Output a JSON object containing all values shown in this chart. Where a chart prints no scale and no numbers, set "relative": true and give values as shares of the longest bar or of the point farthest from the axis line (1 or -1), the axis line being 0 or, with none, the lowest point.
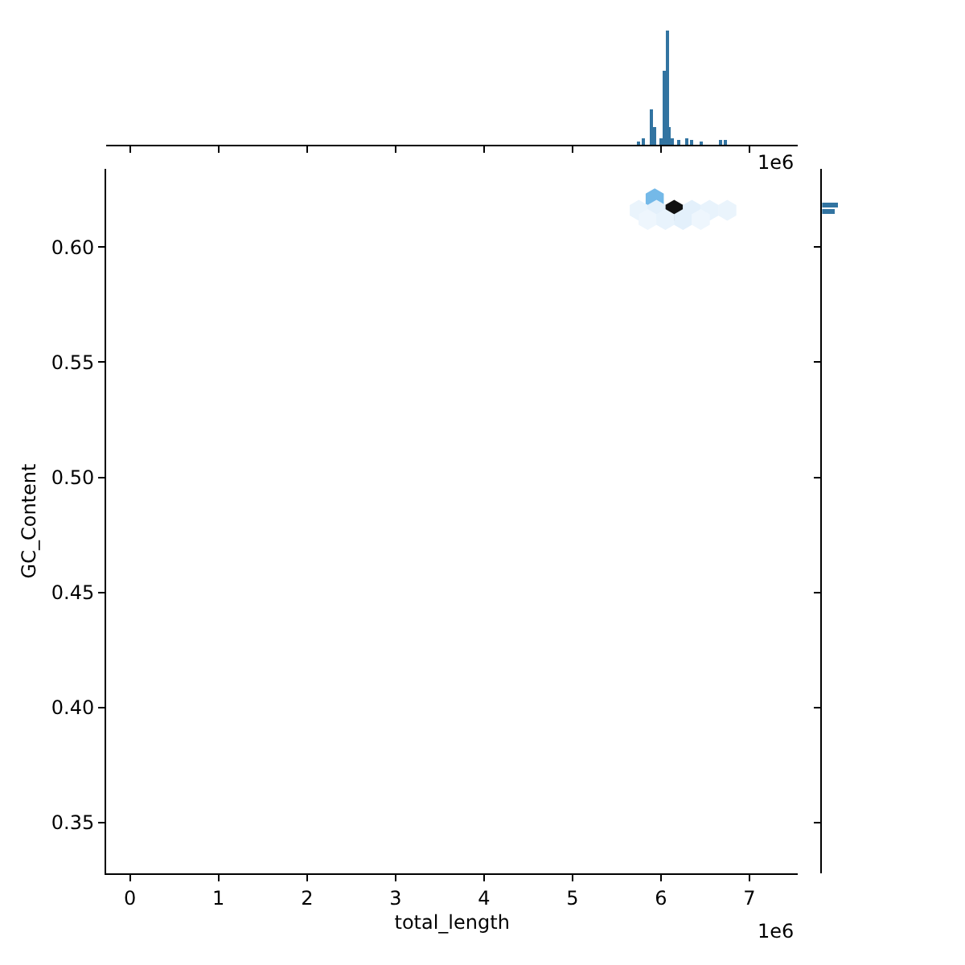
{
  "chart_data": [
    {
      "type": "bar",
      "relative": true,
      "color": "#3274a1",
      "tick_labels": false,
      "annotations": [
        "1e6"
      ],
      "x": [
        5.75,
        5.8,
        5.9,
        5.93,
        6.0,
        6.04,
        6.07,
        6.1,
        6.13,
        6.2,
        6.3,
        6.35,
        6.45,
        6.68,
        6.72
      ],
      "values": [
        0.03,
        0.05,
        0.31,
        0.15,
        0.05,
        0.64,
        1.0,
        0.15,
        0.06,
        0.04,
        0.06,
        0.04,
        0.03,
        0.04,
        0.04
      ],
      "xlim": [
        -0.27,
        7.55
      ],
      "xticks": [
        0,
        1,
        2,
        3,
        4,
        5,
        6,
        7
      ]
    },
    {
      "type": "scatter",
      "xlabel": "total_length",
      "ylabel": "GC_Content",
      "annotations": [
        "1e6"
      ],
      "xlim": [
        -0.27,
        7.55
      ],
      "ylim": [
        0.328,
        0.634
      ],
      "xticks": [
        0,
        1,
        2,
        3,
        4,
        5,
        6,
        7
      ],
      "yticks": [
        {
          "value": 0.35,
          "label": "0.35"
        },
        {
          "value": 0.4,
          "label": "0.40"
        },
        {
          "value": 0.45,
          "label": "0.45"
        },
        {
          "value": 0.5,
          "label": "0.50"
        },
        {
          "value": 0.55,
          "label": "0.55"
        },
        {
          "value": 0.6,
          "label": "0.60"
        }
      ],
      "series": [
        {
          "x": [
            6.15,
            5.93,
            5.75,
            5.95,
            6.35,
            6.55,
            6.75,
            5.85,
            6.05,
            6.25,
            6.45
          ],
          "values": [
            0.616,
            0.621,
            0.616,
            0.616,
            0.616,
            0.616,
            0.616,
            0.612,
            0.612,
            0.612,
            0.612
          ],
          "colors": [
            "#111111",
            "#74b9e8",
            "#eaf4fc",
            "#e3f0fb",
            "#e3f0fb",
            "#e8f3fc",
            "#eaf4fc",
            "#eef6fd",
            "#e8f3fc",
            "#e3f0fb",
            "#eef6fd"
          ]
        }
      ]
    },
    {
      "type": "bar",
      "orientation": "horizontal",
      "relative": true,
      "color": "#3274a1",
      "tick_labels": false,
      "x": [
        0.6184,
        0.6156
      ],
      "values": [
        1,
        0.76
      ],
      "ylim": [
        0.328,
        0.634
      ],
      "yticks": [
        0.35,
        0.4,
        0.45,
        0.5,
        0.55,
        0.6
      ]
    }
  ]
}
